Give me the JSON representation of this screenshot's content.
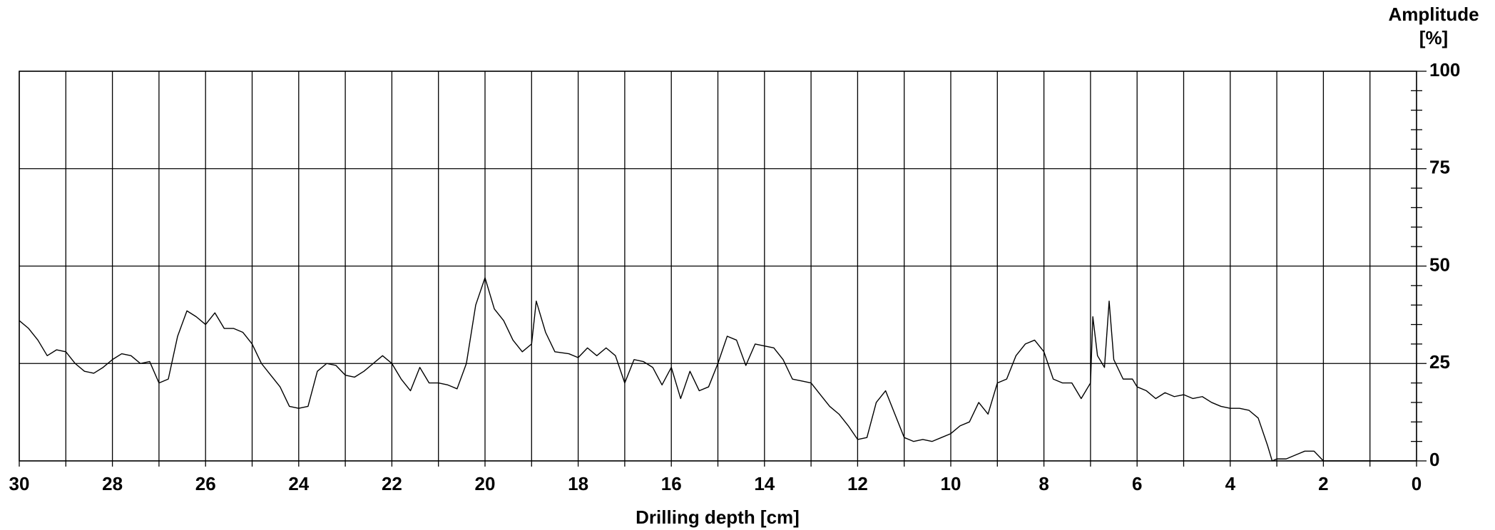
{
  "chart_data": {
    "type": "line",
    "xlabel": "Drilling depth [cm]",
    "ylabel": [
      "Amplitude",
      "[%]"
    ],
    "xlim": [
      30,
      0
    ],
    "ylim": [
      0,
      100
    ],
    "xticks": [
      30,
      28,
      26,
      24,
      22,
      20,
      18,
      16,
      14,
      12,
      10,
      8,
      6,
      4,
      2,
      0
    ],
    "xminor": [
      29,
      27,
      25,
      23,
      21,
      19,
      17,
      15,
      13,
      11,
      9,
      7,
      5,
      3,
      1
    ],
    "yticks": [
      0,
      25,
      50,
      75,
      100
    ],
    "yminor": [
      5,
      10,
      15,
      20,
      30,
      35,
      40,
      45,
      55,
      60,
      65,
      70,
      80,
      85,
      90,
      95
    ],
    "grid": true,
    "series": [
      {
        "color": "#000000",
        "x": [
          30,
          29.8,
          29.6,
          29.4,
          29.2,
          29,
          28.8,
          28.6,
          28.4,
          28.2,
          28,
          27.8,
          27.6,
          27.4,
          27.2,
          27,
          26.8,
          26.6,
          26.4,
          26.2,
          26,
          25.8,
          25.6,
          25.4,
          25.2,
          25,
          24.8,
          24.6,
          24.4,
          24.2,
          24,
          23.8,
          23.6,
          23.4,
          23.2,
          23,
          22.8,
          22.6,
          22.4,
          22.2,
          22,
          21.8,
          21.6,
          21.4,
          21.2,
          21,
          20.8,
          20.6,
          20.4,
          20.2,
          20,
          19.8,
          19.6,
          19.4,
          19.2,
          19,
          18.9,
          18.7,
          18.5,
          18.2,
          18,
          17.8,
          17.6,
          17.4,
          17.2,
          17,
          16.8,
          16.6,
          16.4,
          16.2,
          16,
          15.8,
          15.6,
          15.4,
          15.2,
          15,
          14.8,
          14.6,
          14.4,
          14.2,
          14,
          13.8,
          13.6,
          13.4,
          13.2,
          13,
          12.8,
          12.6,
          12.4,
          12.2,
          12,
          11.8,
          11.6,
          11.4,
          11.2,
          11,
          10.8,
          10.6,
          10.4,
          10.2,
          10,
          9.8,
          9.6,
          9.4,
          9.2,
          9,
          8.8,
          8.6,
          8.4,
          8.2,
          8,
          7.8,
          7.6,
          7.4,
          7.2,
          7,
          6.95,
          6.85,
          6.7,
          6.6,
          6.5,
          6.3,
          6.1,
          6,
          5.8,
          5.6,
          5.4,
          5.2,
          5,
          4.8,
          4.6,
          4.4,
          4.2,
          4,
          3.8,
          3.6,
          3.4,
          3.2,
          3.1,
          3,
          2.8,
          2.6,
          2.4,
          2.2,
          2,
          0
        ],
        "values": [
          36,
          34,
          31,
          27,
          28.5,
          28,
          25,
          23,
          22.5,
          24,
          26,
          27.5,
          27,
          25,
          25.5,
          20,
          21,
          32,
          38.5,
          37,
          35,
          38,
          34,
          34,
          33,
          30,
          25,
          22,
          19,
          14,
          13.5,
          14,
          23,
          25,
          24.5,
          22,
          21.5,
          23,
          25,
          27,
          25,
          21,
          18,
          24,
          20,
          20,
          19.5,
          18.5,
          25,
          40,
          47,
          39,
          36,
          31,
          28,
          30,
          41,
          33,
          28,
          27.5,
          26.5,
          29,
          27,
          29,
          27,
          20,
          26,
          25.5,
          24,
          19.5,
          24,
          16,
          23,
          18,
          19,
          25,
          32,
          31,
          24.5,
          30,
          29.5,
          29,
          26,
          21,
          20.5,
          20,
          17,
          14,
          12,
          9,
          5.5,
          6,
          15,
          18,
          12,
          6,
          5,
          5.5,
          5,
          6,
          7,
          9,
          10,
          15,
          12,
          20,
          21,
          27,
          30,
          31,
          28,
          21,
          20,
          20,
          16,
          20,
          37,
          27,
          24,
          41,
          26,
          21,
          21,
          19,
          18,
          16,
          17.5,
          16.5,
          17,
          16,
          16.5,
          15,
          14,
          13.5,
          13.5,
          13,
          11,
          4,
          0,
          0.5,
          0.5,
          1.5,
          2.5,
          2.5,
          0,
          0
        ]
      }
    ]
  }
}
